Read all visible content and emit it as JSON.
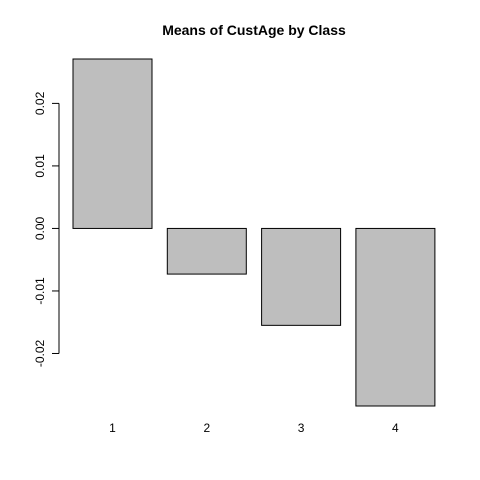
{
  "chart_data": {
    "type": "bar",
    "title": "Means of CustAge by Class",
    "xlabel": "",
    "ylabel": "",
    "categories": [
      "1",
      "2",
      "3",
      "4"
    ],
    "values": [
      0.0271,
      -0.0073,
      -0.0155,
      -0.0284
    ],
    "yticks": [
      -0.02,
      -0.01,
      0.0,
      0.01,
      0.02
    ],
    "ytick_labels": [
      "-0.02",
      "-0.01",
      "0.00",
      "0.01",
      "0.02"
    ],
    "ylim": [
      -0.0284,
      0.0271
    ],
    "bar_fill": "#bebebe",
    "bar_stroke": "#000000",
    "grid": false,
    "legend": "none"
  }
}
